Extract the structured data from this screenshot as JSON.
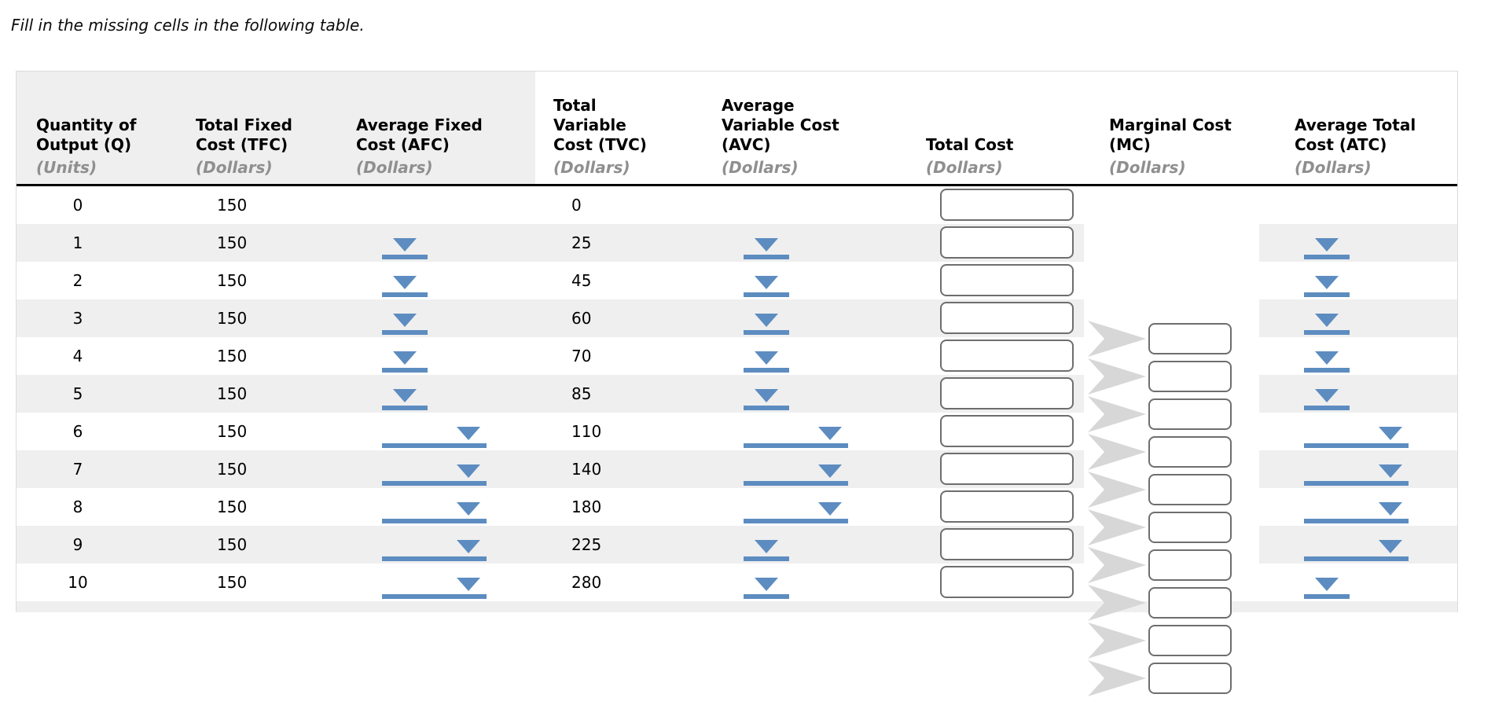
{
  "title": "Fill in the missing cells in the following table.",
  "colors": {
    "accent_blue": "#5d8cc0",
    "chevron_gray": "#d7d7d7",
    "stripe_gray": "#efefef",
    "header_band_gray": "#efefef",
    "input_border_gray": "#6e6e6e",
    "unit_text_gray": "#8f8f8f"
  },
  "table": {
    "header": {
      "columns": [
        {
          "id": "quantity",
          "label": "Quantity of\nOutput (Q)",
          "unit": "(Units)"
        },
        {
          "id": "tfc",
          "label": "Total Fixed\nCost (TFC)",
          "unit": "(Dollars)"
        },
        {
          "id": "afc",
          "label": "Average Fixed\nCost (AFC)",
          "unit": "(Dollars)"
        },
        {
          "id": "tvc",
          "label": "Total\nVariable\nCost (TVC)",
          "unit": "(Dollars)"
        },
        {
          "id": "avc",
          "label": "Average\nVariable Cost\n(AVC)",
          "unit": "(Dollars)"
        },
        {
          "id": "total_cost",
          "label": "Total Cost",
          "unit": "(Dollars)"
        },
        {
          "id": "mc",
          "label": "Marginal Cost\n(MC)",
          "unit": "(Dollars)"
        },
        {
          "id": "atc",
          "label": "Average Total\nCost (ATC)",
          "unit": "(Dollars)"
        }
      ]
    },
    "rows": [
      {
        "quantity": "0",
        "tfc": "150",
        "tvc": "0",
        "afc_select": "none",
        "avc_select": "none",
        "atc_select": "none",
        "total_cost_value": ""
      },
      {
        "quantity": "1",
        "tfc": "150",
        "tvc": "25",
        "afc_select": "short",
        "avc_select": "short",
        "atc_select": "short",
        "total_cost_value": ""
      },
      {
        "quantity": "2",
        "tfc": "150",
        "tvc": "45",
        "afc_select": "short",
        "avc_select": "short",
        "atc_select": "short",
        "total_cost_value": ""
      },
      {
        "quantity": "3",
        "tfc": "150",
        "tvc": "60",
        "afc_select": "short",
        "avc_select": "short",
        "atc_select": "short",
        "total_cost_value": ""
      },
      {
        "quantity": "4",
        "tfc": "150",
        "tvc": "70",
        "afc_select": "short",
        "avc_select": "short",
        "atc_select": "short",
        "total_cost_value": ""
      },
      {
        "quantity": "5",
        "tfc": "150",
        "tvc": "85",
        "afc_select": "short",
        "avc_select": "short",
        "atc_select": "short",
        "total_cost_value": ""
      },
      {
        "quantity": "6",
        "tfc": "150",
        "tvc": "110",
        "afc_select": "long",
        "avc_select": "long",
        "atc_select": "long",
        "total_cost_value": ""
      },
      {
        "quantity": "7",
        "tfc": "150",
        "tvc": "140",
        "afc_select": "long",
        "avc_select": "long",
        "atc_select": "long",
        "total_cost_value": ""
      },
      {
        "quantity": "8",
        "tfc": "150",
        "tvc": "180",
        "afc_select": "long",
        "avc_select": "long",
        "atc_select": "long",
        "total_cost_value": ""
      },
      {
        "quantity": "9",
        "tfc": "150",
        "tvc": "225",
        "afc_select": "long",
        "avc_select": "short",
        "atc_select": "long",
        "total_cost_value": ""
      },
      {
        "quantity": "10",
        "tfc": "150",
        "tvc": "280",
        "afc_select": "long",
        "avc_select": "short",
        "atc_select": "short",
        "total_cost_value": ""
      }
    ],
    "marginal_cost_inputs": {
      "count": 10,
      "value": ""
    }
  }
}
